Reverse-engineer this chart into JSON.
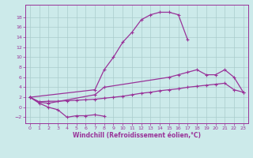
{
  "background_color": "#cceaea",
  "grid_color": "#aacccc",
  "line_color": "#993399",
  "xlabel": "Windchill (Refroidissement éolien,°C)",
  "xlim": [
    -0.5,
    23.5
  ],
  "ylim": [
    -3.2,
    20.5
  ],
  "yticks": [
    -2,
    0,
    2,
    4,
    6,
    8,
    10,
    12,
    14,
    16,
    18
  ],
  "xticks": [
    0,
    1,
    2,
    3,
    4,
    5,
    6,
    7,
    8,
    9,
    10,
    11,
    12,
    13,
    14,
    15,
    16,
    17,
    18,
    19,
    20,
    21,
    22,
    23
  ],
  "line1_x": [
    0,
    1,
    2,
    3,
    4,
    5,
    6,
    7,
    8
  ],
  "line1_y": [
    2,
    0.8,
    0,
    -0.5,
    -2,
    -1.7,
    -1.7,
    -1.5,
    -1.8
  ],
  "line2_x": [
    0,
    7,
    8,
    9,
    10,
    11,
    12,
    13,
    14,
    15,
    16,
    17
  ],
  "line2_y": [
    2,
    3.5,
    7.5,
    10,
    13,
    15,
    17.5,
    18.5,
    19,
    19,
    18.5,
    13.5
  ],
  "line3_x": [
    0,
    1,
    2,
    7,
    8,
    15,
    16,
    17,
    18,
    19,
    20,
    21,
    22,
    23
  ],
  "line3_y": [
    2,
    1,
    0.8,
    2.5,
    4,
    6,
    6.5,
    7,
    7.5,
    6.5,
    6.5,
    7.5,
    6,
    3
  ],
  "line4_x": [
    0,
    1,
    2,
    3,
    4,
    5,
    6,
    7,
    8,
    9,
    10,
    11,
    12,
    13,
    14,
    15,
    16,
    17,
    18,
    19,
    20,
    21,
    22,
    23
  ],
  "line4_y": [
    2,
    1.1,
    1.2,
    1.2,
    1.3,
    1.4,
    1.5,
    1.6,
    1.8,
    2.0,
    2.2,
    2.5,
    2.8,
    3.0,
    3.3,
    3.5,
    3.7,
    4.0,
    4.2,
    4.4,
    4.6,
    4.8,
    3.5,
    3.0
  ]
}
